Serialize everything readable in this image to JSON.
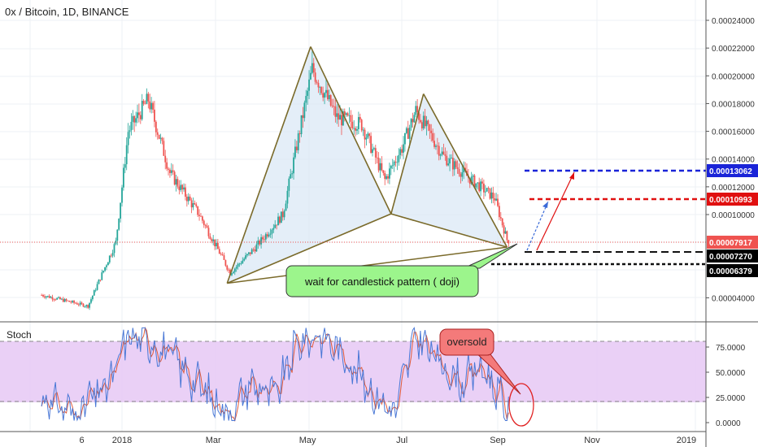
{
  "header": {
    "title": "0x / Bitcoin, 1D, BINANCE"
  },
  "stoch": {
    "title": "Stoch"
  },
  "annotations": {
    "wait": "wait for candlestick pattern ( doji)",
    "oversold": "oversold"
  },
  "colors": {
    "up": "#26a69a",
    "down": "#ef5350",
    "pattern_line": "#7a6a2a",
    "pattern_fill": "#dbe8f6",
    "target_blue": "#1a24d8",
    "target_red": "#e01010",
    "stoch_band": "#e6c8f5",
    "k_line": "#4a78d6",
    "d_line": "#e05a3a",
    "wait_box": "#9cf58c",
    "oversold_box": "#f47a7a"
  },
  "chart_data": [
    {
      "type": "candlestick",
      "title": "0x / Bitcoin, 1D, BINANCE",
      "x_ticks": [
        "6",
        "2018",
        "Mar",
        "May",
        "Jul",
        "Sep",
        "Nov",
        "2019"
      ],
      "y_ticks": [
        "0.00024000",
        "0.00022000",
        "0.00020000",
        "0.00018000",
        "0.00016000",
        "0.00014000",
        "0.00012000",
        "0.00010000",
        "0.00004000"
      ],
      "ylim": [
        3e-05,
        0.00025
      ],
      "price_labels": [
        {
          "value": "0.00013062",
          "color": "#1a24d8"
        },
        {
          "value": "0.00010993",
          "color": "#e01010"
        },
        {
          "value": "0.00007917",
          "color": "#ef5350"
        },
        {
          "value": "0.00007270",
          "color": "#000000"
        },
        {
          "value": "0.00006379",
          "color": "#000000"
        }
      ],
      "pattern_points": [
        {
          "date": "2018-03-10",
          "price": 5.05e-05
        },
        {
          "date": "2018-05-03",
          "price": 0.000221
        },
        {
          "date": "2018-06-24",
          "price": 0.0001005
        },
        {
          "date": "2018-07-15",
          "price": 0.000187
        },
        {
          "date": "2018-09-07",
          "price": 7.65e-05
        }
      ],
      "keyframes": [
        {
          "date": "2017-11-10",
          "price": 4.2e-05
        },
        {
          "date": "2017-12-10",
          "price": 3.4e-05
        },
        {
          "date": "2017-12-28",
          "price": 8e-05
        },
        {
          "date": "2018-01-05",
          "price": 0.00016
        },
        {
          "date": "2018-01-18",
          "price": 0.000183
        },
        {
          "date": "2018-02-01",
          "price": 0.00013
        },
        {
          "date": "2018-02-20",
          "price": 0.0001
        },
        {
          "date": "2018-03-12",
          "price": 5.8e-05
        },
        {
          "date": "2018-03-28",
          "price": 7.6e-05
        },
        {
          "date": "2018-04-15",
          "price": 0.0001
        },
        {
          "date": "2018-05-04",
          "price": 0.000205
        },
        {
          "date": "2018-05-20",
          "price": 0.00017
        },
        {
          "date": "2018-06-05",
          "price": 0.000165
        },
        {
          "date": "2018-06-20",
          "price": 0.000125
        },
        {
          "date": "2018-07-01",
          "price": 0.000148
        },
        {
          "date": "2018-07-10",
          "price": 0.000175
        },
        {
          "date": "2018-07-28",
          "price": 0.000142
        },
        {
          "date": "2018-08-15",
          "price": 0.000125
        },
        {
          "date": "2018-08-30",
          "price": 0.000112
        },
        {
          "date": "2018-09-08",
          "price": 7.8e-05
        }
      ]
    },
    {
      "type": "line",
      "title": "Stoch",
      "y_ticks": [
        "75.0000",
        "50.0000",
        "25.0000",
        "0.0000"
      ],
      "ylim": [
        0,
        100
      ],
      "bands": [
        20,
        80
      ],
      "k_keyframes": [
        {
          "date": "2017-11-10",
          "value": 25
        },
        {
          "date": "2017-12-01",
          "value": 10
        },
        {
          "date": "2017-12-25",
          "value": 40
        },
        {
          "date": "2018-01-05",
          "value": 88
        },
        {
          "date": "2018-01-20",
          "value": 80
        },
        {
          "date": "2018-02-05",
          "value": 62
        },
        {
          "date": "2018-02-25",
          "value": 28
        },
        {
          "date": "2018-03-12",
          "value": 8
        },
        {
          "date": "2018-03-25",
          "value": 40
        },
        {
          "date": "2018-04-10",
          "value": 25
        },
        {
          "date": "2018-04-25",
          "value": 80
        },
        {
          "date": "2018-05-10",
          "value": 88
        },
        {
          "date": "2018-05-28",
          "value": 60
        },
        {
          "date": "2018-06-12",
          "value": 30
        },
        {
          "date": "2018-06-26",
          "value": 10
        },
        {
          "date": "2018-07-10",
          "value": 88
        },
        {
          "date": "2018-07-25",
          "value": 60
        },
        {
          "date": "2018-08-08",
          "value": 40
        },
        {
          "date": "2018-08-22",
          "value": 55
        },
        {
          "date": "2018-09-01",
          "value": 30
        },
        {
          "date": "2018-09-08",
          "value": 7
        }
      ]
    }
  ]
}
